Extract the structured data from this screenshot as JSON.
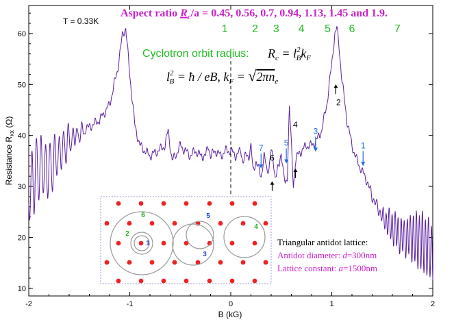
{
  "chart_data": {
    "type": "line",
    "title": "Aspect ratio R_c/a = 0.45, 0.56, 0.7, 0.94, 1.13, 1.45 and 1.9.",
    "title_parts": {
      "prefix": "Aspect ratio ",
      "symbol_r": "R",
      "symbol_sub": "c",
      "suffix": "/a = 0.45, 0.56, 0.7, 0.94, 1.13, 1.45 and 1.9."
    },
    "temperature_label": "T = 0.33K",
    "xlabel": "B (kG)",
    "ylabel": "Resistance R_xx (Ω)",
    "ylabel_parts": {
      "main": "Resistance R",
      "sub": "xx",
      "unit": " (Ω)"
    },
    "xlim": [
      -2,
      2
    ],
    "ylim": [
      8.5,
      65.5
    ],
    "x_ticks": [
      -2,
      -1,
      0,
      1,
      2
    ],
    "x_tick_labels": [
      "-2",
      "-1",
      "0",
      "1",
      "2"
    ],
    "y_ticks": [
      10,
      20,
      30,
      40,
      50,
      60
    ],
    "y_tick_labels": [
      "10",
      "20",
      "30",
      "40",
      "50",
      "60"
    ],
    "grid": false,
    "series_color": "#5a1fa0",
    "series": [
      {
        "x": [
          -2.0,
          -1.9,
          -1.8,
          -1.75,
          -1.6,
          -1.45,
          -1.3,
          -1.2,
          -1.12,
          -1.07,
          -1.04,
          -1.0,
          -0.95,
          -0.9,
          -0.85,
          -0.8,
          -0.72,
          -0.65,
          -0.62,
          -0.6,
          -0.58,
          -0.55,
          -0.5,
          -0.45,
          -0.4,
          -0.35,
          -0.3,
          -0.25,
          -0.22,
          -0.2,
          -0.15,
          -0.1,
          -0.05,
          0.0,
          0.05,
          0.1,
          0.12,
          0.15,
          0.18,
          0.2,
          0.22,
          0.25,
          0.28,
          0.3,
          0.33,
          0.36,
          0.38,
          0.4,
          0.42,
          0.44,
          0.46,
          0.48,
          0.5,
          0.52,
          0.54,
          0.56,
          0.58,
          0.6,
          0.62,
          0.64,
          0.66,
          0.7,
          0.75,
          0.8,
          0.85,
          0.9,
          0.95,
          1.0,
          1.03,
          1.05,
          1.07,
          1.1,
          1.15,
          1.2,
          1.25,
          1.3,
          1.35,
          1.4,
          1.5,
          1.6,
          1.7,
          1.8,
          1.9,
          2.0
        ],
        "y": [
          29,
          34,
          33,
          35,
          39,
          41,
          43,
          46,
          53,
          60,
          61,
          52,
          42,
          38,
          37,
          36,
          37,
          38,
          41,
          38,
          35,
          36,
          38,
          37,
          36,
          37,
          36,
          36,
          38,
          36,
          37,
          36,
          37,
          37,
          36,
          37,
          35,
          36,
          36,
          38,
          33,
          35,
          33,
          32,
          36,
          33,
          34,
          37,
          35,
          32,
          33,
          34,
          37,
          33,
          30,
          32,
          46,
          38,
          30,
          35,
          36,
          37,
          38,
          38,
          39,
          41,
          46,
          54,
          60,
          61,
          58,
          51,
          43,
          38,
          35,
          33,
          31,
          28,
          24,
          22,
          20,
          20,
          19,
          17
        ]
      }
    ],
    "oscillation_regions": [
      {
        "x_start": -2.0,
        "x_end": -1.4,
        "amplitude": 7,
        "period": 0.045
      },
      {
        "x_start": 1.35,
        "x_end": 2.0,
        "amplitude": 6,
        "period": 0.03
      }
    ],
    "commensurability_numbers": {
      "color": "#22bb22",
      "labels": [
        "1",
        "2",
        "3",
        "4",
        "5",
        "6",
        "7"
      ],
      "x": [
        -0.06,
        0.24,
        0.45,
        0.7,
        0.96,
        1.2,
        1.65
      ]
    },
    "formula": {
      "intro": "Cyclotron orbit radius:",
      "intro_color": "#22bb22",
      "line1": "Rc = lB²kF",
      "line2": "lB² = ħ/eB, kF = √(2πne)"
    },
    "annotations": {
      "blue_arrows": [
        {
          "label": "7",
          "x": 0.3,
          "y": 33.5
        },
        {
          "label": "5",
          "x": 0.55,
          "y": 34.5
        },
        {
          "label": "3",
          "x": 0.84,
          "y": 36.8
        },
        {
          "label": "1",
          "x": 1.31,
          "y": 34
        }
      ],
      "black_arrows": [
        {
          "label": "6",
          "x": 0.41,
          "y": 31,
          "direction": "up"
        },
        {
          "label": "4",
          "x": 0.64,
          "y": 33.5,
          "direction": "up"
        },
        {
          "label": "2",
          "x": 1.04,
          "y": 50,
          "direction": "up"
        }
      ],
      "blue_color": "#1e6fe0",
      "zero_line": "dashed"
    },
    "inset": {
      "lattice_note": "Triangular antidot lattice:",
      "diameter_prefix": "Antidot diameter: ",
      "diameter_symbol": "d",
      "diameter_value": "=300nm",
      "constant_prefix": "Lattice constant: ",
      "constant_symbol": "a",
      "constant_value": "=1500nm",
      "note_color": "#cc22cc",
      "dot_color": "#ee2222",
      "orbit_color": "#999999",
      "orbit_labels": [
        {
          "label": "1",
          "color": "#2244cc"
        },
        {
          "label": "2",
          "color": "#22aa22"
        },
        {
          "label": "3",
          "color": "#2244cc"
        },
        {
          "label": "4",
          "color": "#22aa22"
        },
        {
          "label": "5",
          "color": "#2244cc"
        },
        {
          "label": "6",
          "color": "#22aa22"
        }
      ]
    }
  }
}
